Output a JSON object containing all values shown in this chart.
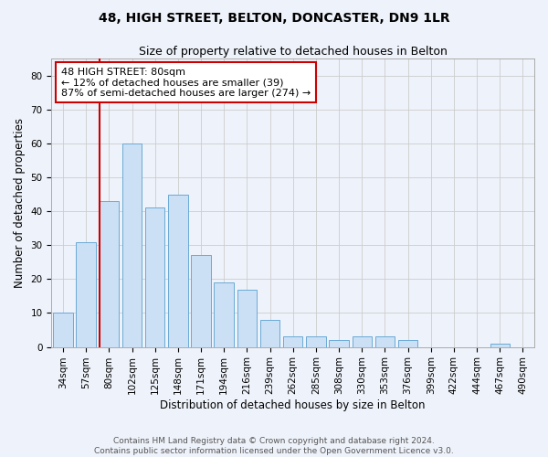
{
  "title": "48, HIGH STREET, BELTON, DONCASTER, DN9 1LR",
  "subtitle": "Size of property relative to detached houses in Belton",
  "xlabel": "Distribution of detached houses by size in Belton",
  "ylabel": "Number of detached properties",
  "categories": [
    "34sqm",
    "57sqm",
    "80sqm",
    "102sqm",
    "125sqm",
    "148sqm",
    "171sqm",
    "194sqm",
    "216sqm",
    "239sqm",
    "262sqm",
    "285sqm",
    "308sqm",
    "330sqm",
    "353sqm",
    "376sqm",
    "399sqm",
    "422sqm",
    "444sqm",
    "467sqm",
    "490sqm"
  ],
  "values": [
    10,
    31,
    43,
    60,
    41,
    45,
    27,
    19,
    17,
    8,
    3,
    3,
    2,
    3,
    3,
    2,
    0,
    0,
    0,
    1,
    0
  ],
  "bar_color": "#cce0f5",
  "bar_edge_color": "#6aaad4",
  "highlight_line_index": 2,
  "annotation_text": "48 HIGH STREET: 80sqm\n← 12% of detached houses are smaller (39)\n87% of semi-detached houses are larger (274) →",
  "annotation_box_color": "#ffffff",
  "annotation_box_edge_color": "#cc0000",
  "annotation_text_color": "#000000",
  "highlight_line_color": "#cc0000",
  "ylim": [
    0,
    85
  ],
  "yticks": [
    0,
    10,
    20,
    30,
    40,
    50,
    60,
    70,
    80
  ],
  "grid_color": "#cccccc",
  "background_color": "#eef2fa",
  "footer_text": "Contains HM Land Registry data © Crown copyright and database right 2024.\nContains public sector information licensed under the Open Government Licence v3.0.",
  "title_fontsize": 10,
  "subtitle_fontsize": 9,
  "xlabel_fontsize": 8.5,
  "ylabel_fontsize": 8.5,
  "tick_fontsize": 7.5,
  "annotation_fontsize": 8,
  "footer_fontsize": 6.5
}
